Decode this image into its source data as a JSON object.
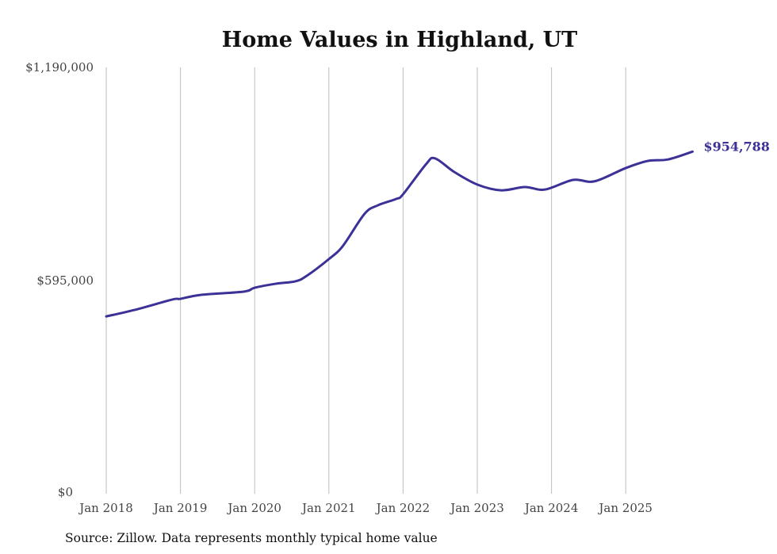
{
  "chart_data": {
    "type": "line",
    "title": "Home Values in Highland, UT",
    "xlabel": "",
    "ylabel": "",
    "ylim": [
      0,
      1190000
    ],
    "xlim": [
      2018.0,
      2026.0
    ],
    "y_ticks": [
      {
        "value": 0,
        "label": "$0"
      },
      {
        "value": 595000,
        "label": "$595,000"
      },
      {
        "value": 1190000,
        "label": "$1,190,000"
      }
    ],
    "x_ticks": [
      {
        "value": 2018,
        "label": "Jan 2018"
      },
      {
        "value": 2019,
        "label": "Jan 2019"
      },
      {
        "value": 2020,
        "label": "Jan 2020"
      },
      {
        "value": 2021,
        "label": "Jan 2021"
      },
      {
        "value": 2022,
        "label": "Jan 2022"
      },
      {
        "value": 2023,
        "label": "Jan 2023"
      },
      {
        "value": 2024,
        "label": "Jan 2024"
      },
      {
        "value": 2025,
        "label": "Jan 2025"
      }
    ],
    "grid": "vertical",
    "series": [
      {
        "name": "Typical home value",
        "color": "#3b3196",
        "x": [
          2018.0,
          2018.38,
          2018.89,
          2019.0,
          2019.27,
          2019.85,
          2020.0,
          2020.28,
          2020.55,
          2020.7,
          2021.0,
          2021.19,
          2021.48,
          2021.66,
          2021.91,
          2022.0,
          2022.31,
          2022.43,
          2022.69,
          2023.0,
          2023.32,
          2023.64,
          2023.91,
          2024.29,
          2024.58,
          2025.0,
          2025.3,
          2025.57,
          2025.9
        ],
        "values": [
          495000,
          513000,
          542000,
          544000,
          555000,
          564000,
          575000,
          586000,
          593000,
          608000,
          655000,
          692000,
          781000,
          805000,
          823000,
          836000,
          920000,
          936000,
          898000,
          863000,
          847000,
          856000,
          849000,
          876000,
          872000,
          909000,
          929000,
          933000,
          954788
        ]
      }
    ],
    "end_label": "$954,788",
    "source": "Source: Zillow. Data represents monthly typical home value"
  }
}
